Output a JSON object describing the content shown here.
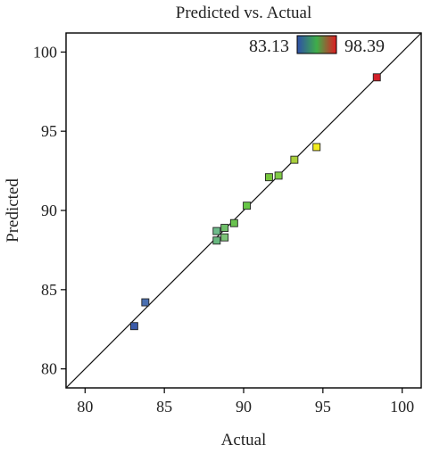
{
  "chart_data": {
    "type": "scatter",
    "title": "Predicted vs. Actual",
    "xlabel": "Actual",
    "ylabel": "Predicted",
    "xlim": [
      78.8,
      101.2
    ],
    "ylim": [
      78.8,
      101.2
    ],
    "xticks": [
      80,
      85,
      90,
      95,
      100
    ],
    "yticks": [
      80,
      85,
      90,
      95,
      100
    ],
    "reference_line": "y = x",
    "colorbar": {
      "min_label": "83.13",
      "max_label": "98.39",
      "min": 83.13,
      "max": 98.39,
      "min_color": "#2f4fa8",
      "max_color": "#e11b22",
      "stops": [
        "#2f4fa8",
        "#3fae49",
        "#e11b22"
      ]
    },
    "points": [
      {
        "x": 83.1,
        "y": 82.7,
        "color": "#3b5ba8"
      },
      {
        "x": 83.8,
        "y": 84.2,
        "color": "#4a6fb0"
      },
      {
        "x": 88.3,
        "y": 88.1,
        "color": "#67b87f"
      },
      {
        "x": 88.3,
        "y": 88.7,
        "color": "#6dbb8a"
      },
      {
        "x": 88.8,
        "y": 88.3,
        "color": "#7cc377"
      },
      {
        "x": 88.8,
        "y": 88.9,
        "color": "#6fbf6a"
      },
      {
        "x": 89.4,
        "y": 89.2,
        "color": "#69c14f"
      },
      {
        "x": 90.2,
        "y": 90.3,
        "color": "#66c646"
      },
      {
        "x": 91.6,
        "y": 92.1,
        "color": "#77c63d"
      },
      {
        "x": 92.2,
        "y": 92.2,
        "color": "#7fca45"
      },
      {
        "x": 93.2,
        "y": 93.2,
        "color": "#a9cf3b"
      },
      {
        "x": 94.6,
        "y": 94.0,
        "color": "#f2ec1d"
      },
      {
        "x": 98.4,
        "y": 98.4,
        "color": "#d3202a"
      }
    ]
  }
}
